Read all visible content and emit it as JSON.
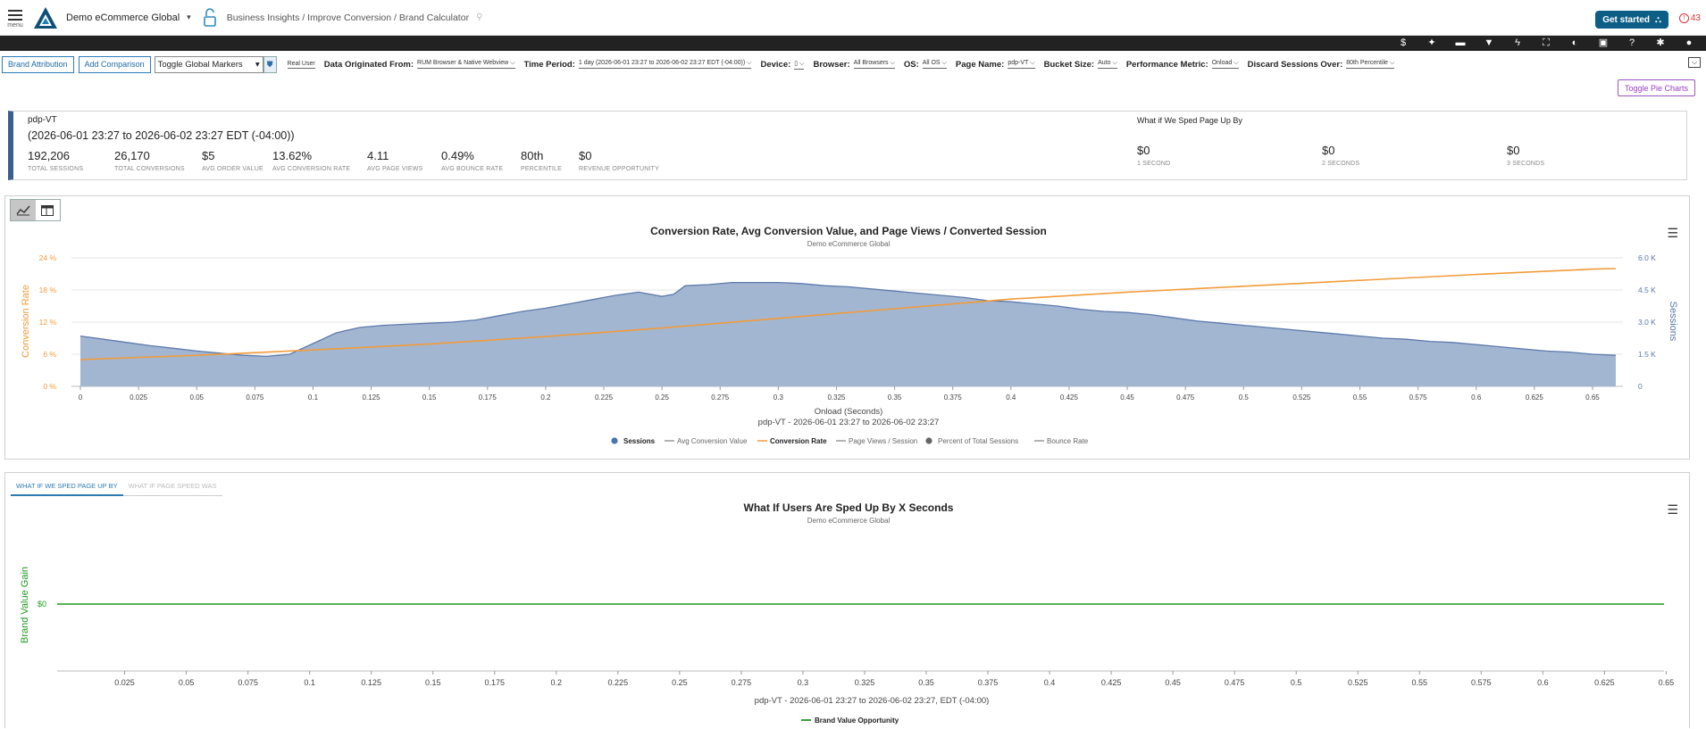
{
  "header": {
    "menu_label": "menu",
    "app_name": "Demo eCommerce Global",
    "breadcrumb": "Business Insights / Improve Conversion / Brand Calculator",
    "get_started": "Get started",
    "alert_count": "43"
  },
  "iconbar": {
    "icons": [
      "dollar-icon",
      "sparkle-icon",
      "comment-icon",
      "filter-icon",
      "bolt-icon",
      "expand-icon",
      "contrast-icon",
      "report-icon",
      "help-icon",
      "settings-icon",
      "user-icon"
    ]
  },
  "filters": {
    "brand_attribution": "Brand Attribution",
    "add_comparison": "Add Comparison",
    "global_markers": "Toggle Global Markers",
    "real_user": "Real User",
    "origin_label": "Data Originated From:",
    "origin_value": "RUM Browser & Native Webview",
    "time_label": "Time Period:",
    "time_value": "1 day (2026-06-01 23:27 to 2026-06-02 23:27 EDT (-04:00))",
    "device_label": "Device:",
    "browser_label": "Browser:",
    "browser_value": "All Browsers",
    "os_label": "OS:",
    "os_value": "All OS",
    "page_label": "Page Name:",
    "page_value": "pdp-VT",
    "bucket_label": "Bucket Size:",
    "bucket_value": "Auto",
    "metric_label": "Performance Metric:",
    "metric_value": "Onload",
    "discard_label": "Discard Sessions Over:",
    "discard_value": "80th Percentile"
  },
  "toggle_pie": "Toggle Pie Charts",
  "summary": {
    "page": "pdp-VT",
    "range": "(2026-06-01 23:27 to 2026-06-02 23:27 EDT (-04:00))",
    "metrics": [
      {
        "value": "192,206",
        "label": "TOTAL SESSIONS"
      },
      {
        "value": "26,170",
        "label": "TOTAL CONVERSIONS"
      },
      {
        "value": "$5",
        "label": "AVG ORDER VALUE"
      },
      {
        "value": "13.62%",
        "label": "AVG CONVERSION RATE"
      },
      {
        "value": "4.11",
        "label": "AVG PAGE VIEWS"
      },
      {
        "value": "0.49%",
        "label": "AVG BOUNCE RATE"
      },
      {
        "value": "80th",
        "label": "PERCENTILE"
      },
      {
        "value": "$0",
        "label": "REVENUE OPPORTUNITY"
      }
    ],
    "whatif_title": "What if We Sped Page Up By",
    "whatif": [
      {
        "value": "$0",
        "label": "1 SECOND"
      },
      {
        "value": "$0",
        "label": "2 SECONDS"
      },
      {
        "value": "$0",
        "label": "3 SECONDS"
      }
    ]
  },
  "chart_data": [
    {
      "type": "area",
      "title": "Conversion Rate, Avg Conversion Value, and Page Views / Converted Session",
      "subtitle": "Demo eCommerce Global",
      "xlabel": "Onload (Seconds)",
      "xlabel2": "pdp-VT - 2026-06-01 23:27 to 2026-06-02 23:27",
      "ylabel_left": "Conversion Rate",
      "ylabel_right": "Sessions",
      "x_ticks": [
        "0",
        "0.025",
        "0.05",
        "0.075",
        "0.1",
        "0.125",
        "0.15",
        "0.175",
        "0.2",
        "0.225",
        "0.25",
        "0.275",
        "0.3",
        "0.325",
        "0.35",
        "0.375",
        "0.4",
        "0.425",
        "0.45",
        "0.475",
        "0.5",
        "0.525",
        "0.55",
        "0.575",
        "0.6",
        "0.625",
        "0.65"
      ],
      "y_left_ticks": [
        "0 %",
        "6 %",
        "12 %",
        "18 %",
        "24 %"
      ],
      "y_right_ticks": [
        "0",
        "1.5 K",
        "3.0 K",
        "4.5 K",
        "6.0 K"
      ],
      "xlim": [
        0,
        0.66
      ],
      "ylim_left": [
        0,
        24
      ],
      "ylim_right": [
        0,
        6000
      ],
      "series": [
        {
          "name": "Sessions",
          "axis": "right",
          "color": "#6f8fbb",
          "x": [
            0,
            0.01,
            0.02,
            0.03,
            0.04,
            0.05,
            0.06,
            0.07,
            0.08,
            0.09,
            0.1,
            0.11,
            0.12,
            0.13,
            0.14,
            0.15,
            0.16,
            0.17,
            0.18,
            0.19,
            0.2,
            0.21,
            0.22,
            0.23,
            0.24,
            0.25,
            0.255,
            0.26,
            0.27,
            0.28,
            0.29,
            0.3,
            0.31,
            0.32,
            0.33,
            0.34,
            0.35,
            0.36,
            0.37,
            0.38,
            0.39,
            0.4,
            0.41,
            0.42,
            0.43,
            0.44,
            0.45,
            0.46,
            0.47,
            0.48,
            0.49,
            0.5,
            0.51,
            0.52,
            0.53,
            0.54,
            0.55,
            0.56,
            0.57,
            0.58,
            0.59,
            0.6,
            0.61,
            0.62,
            0.63,
            0.64,
            0.65,
            0.66
          ],
          "values": [
            2350,
            2200,
            2050,
            1900,
            1780,
            1650,
            1550,
            1450,
            1400,
            1500,
            2000,
            2500,
            2750,
            2850,
            2900,
            2950,
            3000,
            3100,
            3300,
            3500,
            3650,
            3850,
            4050,
            4250,
            4400,
            4200,
            4300,
            4700,
            4750,
            4850,
            4850,
            4850,
            4800,
            4700,
            4650,
            4550,
            4450,
            4350,
            4250,
            4150,
            4000,
            3950,
            3850,
            3750,
            3600,
            3500,
            3450,
            3350,
            3200,
            3050,
            2950,
            2850,
            2750,
            2650,
            2550,
            2450,
            2350,
            2250,
            2200,
            2100,
            2050,
            1950,
            1850,
            1750,
            1650,
            1600,
            1500,
            1450
          ]
        },
        {
          "name": "Conversion Rate",
          "axis": "left",
          "color": "#f29b38",
          "x": [
            0,
            0.05,
            0.1,
            0.15,
            0.2,
            0.25,
            0.3,
            0.35,
            0.4,
            0.45,
            0.5,
            0.55,
            0.6,
            0.65,
            0.66
          ],
          "values": [
            5.0,
            5.8,
            6.8,
            7.9,
            9.3,
            10.9,
            12.7,
            14.5,
            16.3,
            17.6,
            18.7,
            19.8,
            20.9,
            21.9,
            22.0
          ]
        }
      ],
      "legend": [
        "Sessions",
        "Avg Conversion Value",
        "Conversion Rate",
        "Page Views / Session",
        "Percent of Total Sessions",
        "Bounce Rate"
      ],
      "legend_placement": "bottom-center"
    },
    {
      "type": "line",
      "title": "What If Users Are Sped Up By X Seconds",
      "subtitle": "Demo eCommerce Global",
      "xlabel": "pdp-VT - 2026-06-01 23:27 to 2026-06-02 23:27, EDT (-04:00)",
      "ylabel": "Brand Value Gain",
      "y_ticks": [
        "$0"
      ],
      "x_ticks": [
        "0.025",
        "0.05",
        "0.075",
        "0.1",
        "0.125",
        "0.15",
        "0.175",
        "0.2",
        "0.225",
        "0.25",
        "0.275",
        "0.3",
        "0.325",
        "0.35",
        "0.375",
        "0.4",
        "0.425",
        "0.45",
        "0.475",
        "0.5",
        "0.525",
        "0.55",
        "0.575",
        "0.6",
        "0.625",
        "0.65"
      ],
      "xlim": [
        0.0085,
        0.66
      ],
      "series": [
        {
          "name": "Brand Value Opportunity",
          "color": "#1e9a1e",
          "x": [
            0.0085,
            0.66
          ],
          "values": [
            0,
            0
          ]
        }
      ],
      "legend_placement": "bottom-center"
    }
  ],
  "lower_tabs": [
    "WHAT IF WE SPED PAGE UP BY",
    "WHAT IF PAGE SPEED WAS"
  ]
}
